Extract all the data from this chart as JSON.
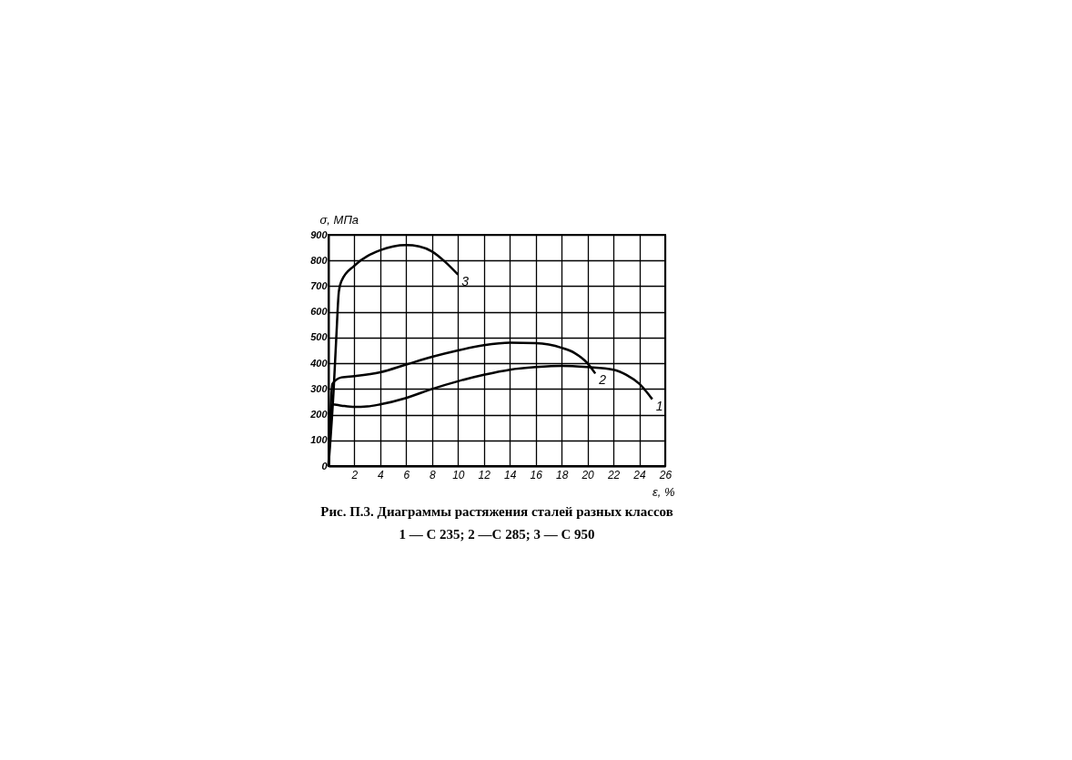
{
  "chart_data": {
    "type": "line",
    "title": "Рис. П.3. Диаграммы растяжения сталей разных классов",
    "subtitle": "1 — С 235; 2 —С 285; 3 — С 950",
    "xlabel": "ε, %",
    "ylabel": "σ, МПа",
    "xlim": [
      0,
      26
    ],
    "xticks": [
      2,
      4,
      6,
      8,
      10,
      12,
      14,
      16,
      18,
      20,
      22,
      24,
      26
    ],
    "ylim": [
      0,
      900
    ],
    "yticks": [
      0,
      100,
      200,
      300,
      400,
      500,
      600,
      700,
      800,
      900
    ],
    "grid": true,
    "legend": false,
    "series": [
      {
        "name": "1",
        "color": "#000000",
        "x": [
          0,
          0.3,
          1,
          2,
          3,
          4,
          6,
          8,
          10,
          12,
          14,
          16,
          18,
          20,
          22,
          23,
          24,
          25
        ],
        "values": [
          0,
          240,
          235,
          230,
          232,
          240,
          265,
          300,
          330,
          355,
          375,
          385,
          390,
          385,
          375,
          355,
          320,
          260
        ]
      },
      {
        "name": "2",
        "color": "#000000",
        "x": [
          0,
          0.3,
          1,
          2,
          4,
          6,
          8,
          10,
          12,
          14,
          16,
          18,
          19,
          20,
          20.6
        ],
        "values": [
          0,
          320,
          345,
          350,
          365,
          395,
          425,
          450,
          470,
          480,
          478,
          460,
          440,
          400,
          360
        ]
      },
      {
        "name": "3",
        "color": "#000000",
        "x": [
          0,
          0.4,
          0.6,
          0.8,
          1,
          2,
          4,
          6,
          7,
          8,
          9,
          10
        ],
        "values": [
          0,
          300,
          500,
          680,
          720,
          780,
          840,
          860,
          855,
          835,
          795,
          745
        ]
      }
    ]
  }
}
